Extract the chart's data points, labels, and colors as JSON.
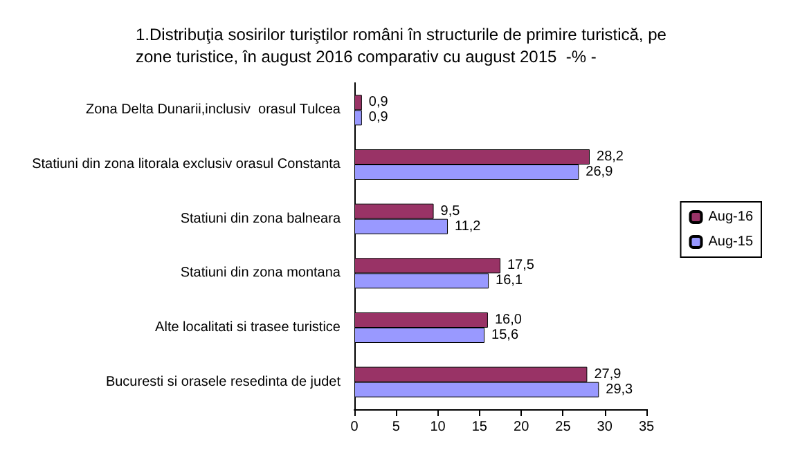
{
  "chart_data": {
    "type": "bar",
    "orientation": "horizontal",
    "title": "1.Distribuţia sosirilor turiştilor români în structurile de primire turistică, pe zone turistice, în august 2016 comparativ cu august 2015  -% -",
    "categories": [
      "Zona Delta Dunarii,inclusiv  orasul Tulcea",
      "Statiuni din zona litorala exclusiv orasul Constanta",
      "Statiuni din zona balneara",
      "Statiuni din zona montana",
      "Alte localitati si trasee turistice",
      "Bucuresti si orasele resedinta de judet"
    ],
    "series": [
      {
        "name": "Aug-16",
        "color": "#993366",
        "values": [
          0.9,
          28.2,
          9.5,
          17.5,
          16.0,
          27.9
        ],
        "value_labels": [
          "0,9",
          "28,2",
          "9,5",
          "17,5",
          "16,0",
          "27,9"
        ]
      },
      {
        "name": "Aug-15",
        "color": "#9999ff",
        "values": [
          0.9,
          26.9,
          11.2,
          16.1,
          15.6,
          29.3
        ],
        "value_labels": [
          "0,9",
          "26,9",
          "11,2",
          "16,1",
          "15,6",
          "29,3"
        ]
      }
    ],
    "xlim": [
      0,
      35
    ],
    "xticks": [
      0,
      5,
      10,
      15,
      20,
      25,
      30,
      35
    ],
    "grid": false,
    "legend": "right"
  }
}
